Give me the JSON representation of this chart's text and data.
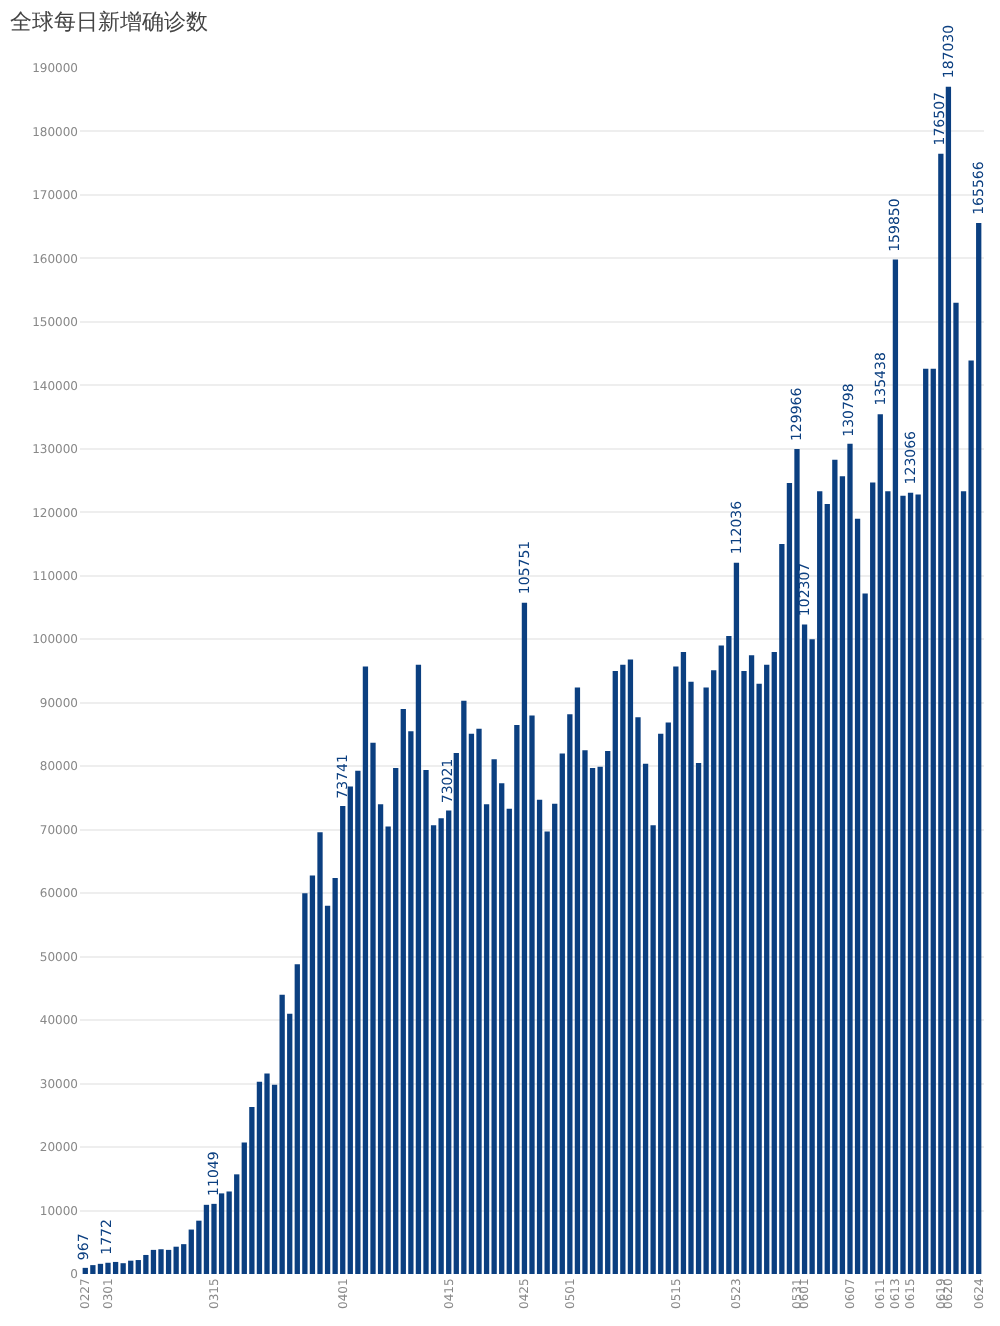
{
  "chart_data": {
    "type": "bar",
    "title": "全球每日新增确诊数",
    "categories": [
      "0227",
      null,
      null,
      "0301",
      null,
      null,
      null,
      null,
      null,
      null,
      null,
      null,
      null,
      null,
      null,
      null,
      null,
      "0315",
      null,
      null,
      null,
      null,
      null,
      null,
      null,
      null,
      null,
      null,
      null,
      null,
      null,
      null,
      null,
      null,
      "0401",
      null,
      null,
      null,
      null,
      null,
      null,
      null,
      null,
      null,
      null,
      null,
      null,
      null,
      "0415",
      null,
      null,
      null,
      null,
      null,
      null,
      null,
      null,
      null,
      "0425",
      null,
      null,
      null,
      null,
      null,
      "0501",
      null,
      null,
      null,
      null,
      null,
      null,
      null,
      null,
      null,
      null,
      null,
      null,
      null,
      "0515",
      null,
      null,
      null,
      null,
      null,
      null,
      null,
      "0523",
      null,
      null,
      null,
      null,
      null,
      null,
      null,
      "0531",
      "0601",
      null,
      null,
      null,
      null,
      null,
      "0607",
      null,
      null,
      null,
      "0611",
      null,
      "0613",
      null,
      "0615",
      null,
      null,
      null,
      "0619",
      "0620",
      null,
      null,
      null,
      "0624"
    ],
    "values": [
      967,
      1400,
      1600,
      1772,
      1900,
      1700,
      2100,
      2200,
      3000,
      3800,
      3900,
      3800,
      4300,
      4700,
      7000,
      8400,
      10900,
      11049,
      12700,
      13000,
      15700,
      20700,
      26300,
      30300,
      31600,
      29800,
      44000,
      41000,
      48800,
      60000,
      62800,
      69600,
      58000,
      62400,
      73741,
      76800,
      79300,
      95700,
      83700,
      74000,
      70500,
      79700,
      89000,
      85500,
      96000,
      79400,
      70700,
      71800,
      73021,
      82100,
      90300,
      85100,
      85900,
      74000,
      81100,
      77300,
      73300,
      86500,
      105751,
      88000,
      74700,
      69700,
      74100,
      82000,
      88200,
      92400,
      82500,
      79700,
      79900,
      82400,
      95000,
      96000,
      96800,
      87700,
      80400,
      70700,
      85100,
      86900,
      95700,
      98000,
      93300,
      80500,
      92400,
      95100,
      99000,
      100500,
      112036,
      95000,
      97500,
      93000,
      96000,
      98000,
      115000,
      124600,
      129966,
      102307,
      100000,
      123300,
      121300,
      128300,
      125700,
      130798,
      119000,
      107200,
      124700,
      135438,
      123300,
      159850,
      122600,
      123066,
      122800,
      142600,
      142600,
      176507,
      187030,
      153000,
      123300,
      143900,
      165566
    ],
    "value_labels": [
      "967",
      null,
      null,
      "1772",
      null,
      null,
      null,
      null,
      null,
      null,
      null,
      null,
      null,
      null,
      null,
      null,
      null,
      "11049",
      null,
      null,
      null,
      null,
      null,
      null,
      null,
      null,
      null,
      null,
      null,
      null,
      null,
      null,
      null,
      null,
      "73741",
      null,
      null,
      null,
      null,
      null,
      null,
      null,
      null,
      null,
      null,
      null,
      null,
      null,
      "73021",
      null,
      null,
      null,
      null,
      null,
      null,
      null,
      null,
      null,
      "105751",
      null,
      null,
      null,
      null,
      null,
      null,
      null,
      null,
      null,
      null,
      null,
      null,
      null,
      null,
      null,
      null,
      null,
      null,
      null,
      null,
      null,
      null,
      null,
      null,
      null,
      null,
      null,
      "112036",
      null,
      null,
      null,
      null,
      null,
      null,
      null,
      "129966",
      "102307",
      null,
      null,
      null,
      null,
      null,
      "130798",
      null,
      null,
      null,
      "135438",
      null,
      "159850",
      null,
      "123066",
      null,
      null,
      null,
      "176507",
      "187030",
      null,
      null,
      null,
      "165566"
    ],
    "color": "#0b3f80",
    "ylim": [
      0,
      190000
    ],
    "yticks": [
      0,
      10000,
      20000,
      30000,
      40000,
      50000,
      60000,
      70000,
      80000,
      90000,
      100000,
      110000,
      120000,
      130000,
      140000,
      150000,
      160000,
      170000,
      180000,
      190000
    ],
    "grid": "y"
  }
}
